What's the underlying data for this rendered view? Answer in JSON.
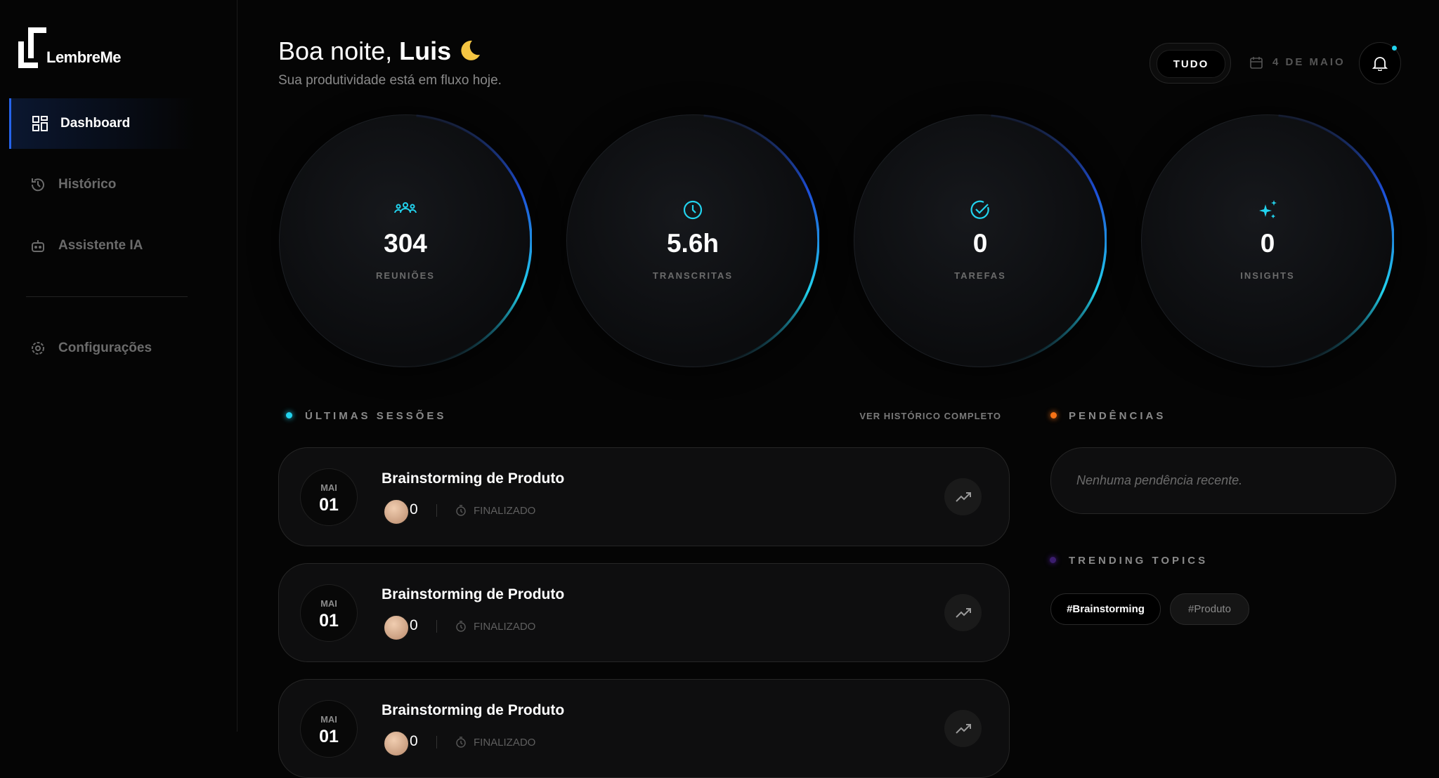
{
  "brand": "LembreMe",
  "nav": [
    {
      "label": "Dashboard",
      "active": true
    },
    {
      "label": "Histórico"
    },
    {
      "label": "Assistente IA"
    },
    {
      "label": "Configurações"
    }
  ],
  "header": {
    "greeting": "Boa noite,",
    "name": "Luis",
    "subtitle": "Sua produtividade está em fluxo hoje.",
    "filter": "TUDO",
    "date": "4 DE MAIO"
  },
  "stats": [
    {
      "value": "304",
      "label": "REUNIÕES"
    },
    {
      "value": "5.6h",
      "label": "TRANSCRITAS"
    },
    {
      "value": "0",
      "label": "TAREFAS"
    },
    {
      "value": "0",
      "label": "INSIGHTS"
    }
  ],
  "sessions_section": {
    "title": "ÚLTIMAS SESSÕES",
    "link": "VER HISTÓRICO COMPLETO"
  },
  "sessions": [
    {
      "month": "MAI",
      "day": "01",
      "title": "Brainstorming de Produto",
      "count": "0",
      "status": "FINALIZADO"
    },
    {
      "month": "MAI",
      "day": "01",
      "title": "Brainstorming de Produto",
      "count": "0",
      "status": "FINALIZADO"
    },
    {
      "month": "MAI",
      "day": "01",
      "title": "Brainstorming de Produto",
      "count": "0",
      "status": "FINALIZADO"
    }
  ],
  "pending": {
    "title": "PENDÊNCIAS",
    "empty": "Nenhuma pendência recente."
  },
  "trending": {
    "title": "TRENDING TOPICS",
    "tags": [
      "#Brainstorming",
      "#Produto"
    ]
  }
}
